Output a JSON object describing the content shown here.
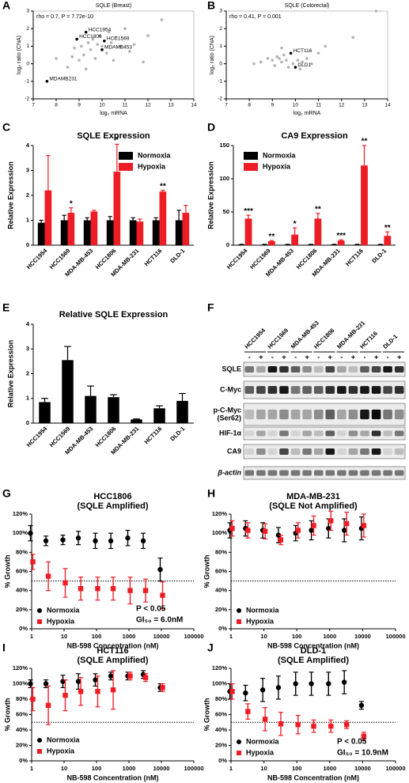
{
  "chart_data": [
    {
      "type": "scatter",
      "panel": "A",
      "title": "SQLE (Breast)",
      "annotation": "rho = 0.7, P = 7.72e-10",
      "x_label": "log₂ mRNA",
      "y_label": "log₂ ratio (CNA)",
      "x": [
        8.0,
        8.5,
        8.7,
        8.8,
        9.0,
        9.1,
        9.2,
        9.4,
        9.5,
        9.6,
        9.7,
        9.8,
        9.9,
        10.0,
        10.2,
        10.3,
        10.4,
        10.5,
        10.6,
        10.8,
        11.0,
        11.2,
        11.4,
        12.0,
        12.6,
        9.3,
        11.8,
        9.3,
        8.9,
        10.1,
        10.0,
        7.6
      ],
      "values": [
        0.3,
        -0.2,
        0.4,
        0.9,
        0.2,
        1.0,
        0.5,
        1.2,
        0.8,
        1.4,
        0.3,
        1.1,
        1.6,
        1.0,
        0.6,
        1.8,
        1.2,
        0.2,
        1.5,
        1.0,
        2.0,
        0.7,
        1.1,
        1.6,
        2.5,
        -0.3,
        0.1,
        1.8,
        1.4,
        1.3,
        0.8,
        -1.0
      ],
      "point_labels": [
        null,
        null,
        null,
        null,
        null,
        null,
        null,
        null,
        null,
        null,
        null,
        null,
        null,
        null,
        null,
        null,
        null,
        null,
        null,
        null,
        null,
        null,
        null,
        null,
        null,
        null,
        null,
        "HCC1954",
        "HCC1806",
        "HCC1569",
        "MDAMB453",
        "MDAMB231"
      ],
      "color": "#b3b3b3",
      "label_color": "#000000",
      "xlim": [
        7,
        14
      ],
      "xticks": [
        7,
        8,
        9,
        10,
        11,
        12,
        13,
        14
      ],
      "ylim": [
        -2,
        3
      ],
      "yticks": [
        -2,
        -1,
        0,
        1,
        2,
        3
      ]
    },
    {
      "type": "scatter",
      "panel": "B",
      "title": "SQLE (Colorectal)",
      "annotation": "rho = 0.41, P = 0.001",
      "x_label": "log₂ mRNA",
      "y_label": "log₂ ratio (CNA)",
      "x": [
        8.2,
        8.5,
        8.8,
        9.0,
        9.1,
        9.2,
        9.3,
        9.4,
        9.5,
        9.6,
        9.7,
        9.9,
        10.1,
        10.2,
        10.3,
        10.5,
        10.7,
        11.0,
        11.3,
        12.5,
        13.5,
        9.4,
        9.8,
        10.0
      ],
      "values": [
        0.0,
        0.1,
        0.3,
        0.2,
        -0.1,
        0.4,
        0.3,
        0.1,
        0.5,
        0.2,
        -0.2,
        0.0,
        0.2,
        -0.3,
        0.1,
        0.3,
        0.0,
        0.6,
        1.0,
        1.5,
        3.0,
        0.9,
        0.6,
        -0.2
      ],
      "point_labels": [
        null,
        null,
        null,
        null,
        null,
        null,
        null,
        null,
        null,
        null,
        null,
        null,
        null,
        null,
        null,
        null,
        null,
        null,
        null,
        null,
        null,
        null,
        "HCT116",
        "DLD1"
      ],
      "color": "#b3b3b3",
      "label_color": "#000000",
      "xlim": [
        7,
        14
      ],
      "xticks": [
        7,
        8,
        9,
        10,
        11,
        12,
        13,
        14
      ],
      "ylim": [
        -2,
        3
      ],
      "yticks": [
        -2,
        -1,
        0,
        1,
        2,
        3
      ]
    },
    {
      "type": "bar",
      "panel": "C",
      "title": "SQLE Expression",
      "y_label": "Relative Expression",
      "categories": [
        "HCC1954",
        "HCC1569",
        "MDA-MB-453",
        "HCC1806",
        "MDA-MB-231",
        "HCT116",
        "DLD-1"
      ],
      "series": [
        {
          "name": "Normoxia",
          "color": "#000000",
          "values": [
            0.9,
            1.0,
            1.0,
            1.0,
            1.0,
            1.0,
            1.0
          ],
          "errors": [
            0.1,
            0.2,
            0.1,
            0.15,
            0.1,
            0.1,
            0.4
          ]
        },
        {
          "name": "Hypoxia",
          "color": "#ee1c25",
          "values": [
            2.2,
            1.3,
            1.35,
            2.95,
            0.95,
            2.15,
            1.3
          ],
          "errors": [
            1.4,
            0.2,
            0.05,
            1.1,
            0.1,
            0.05,
            0.3
          ]
        }
      ],
      "significance": [
        null,
        "*",
        null,
        "*",
        null,
        "**",
        null
      ],
      "ylim": [
        0,
        4
      ],
      "yticks": [
        0,
        1,
        2,
        3,
        4
      ]
    },
    {
      "type": "bar",
      "panel": "D",
      "title": "CA9 Expression",
      "y_label": "Relative Expression",
      "categories": [
        "HCC1954",
        "HCC1569",
        "MDA-MB-453",
        "HCC1806",
        "MDA-MB-231",
        "HCT116",
        "DLD-1"
      ],
      "series": [
        {
          "name": "Normoxia",
          "color": "#000000",
          "values": [
            1,
            1,
            1,
            1,
            1,
            1,
            1
          ],
          "errors": [
            0.3,
            0.3,
            0.3,
            0.3,
            0.3,
            0.3,
            0.3
          ]
        },
        {
          "name": "Hypoxia",
          "color": "#ee1c25",
          "values": [
            40,
            6,
            16,
            40,
            7,
            120,
            14
          ],
          "errors": [
            5,
            1,
            10,
            8,
            1,
            30,
            6
          ]
        }
      ],
      "significance": [
        "***",
        "**",
        "*",
        "**",
        "***",
        "**",
        "**"
      ],
      "ylim": [
        0,
        150
      ],
      "yticks": [
        0,
        50,
        100,
        150
      ]
    },
    {
      "type": "bar",
      "panel": "E",
      "title": "Relative SQLE Expression",
      "y_label": "Relative Expression",
      "categories": [
        "HCC1954",
        "HCC1569",
        "MDA-MB-453",
        "HCC1806",
        "MDA-MB-231",
        "HCT116",
        "DLD-1"
      ],
      "series": [
        {
          "color": "#000000",
          "values": [
            0.85,
            2.55,
            1.1,
            1.05,
            0.15,
            0.6,
            0.9
          ],
          "errors": [
            0.15,
            0.55,
            0.4,
            0.1,
            0.02,
            0.1,
            0.3
          ]
        }
      ],
      "ylim": [
        0,
        4
      ],
      "yticks": [
        0,
        1,
        2,
        3,
        4
      ]
    },
    {
      "type": "dose",
      "panel": "G",
      "title": "HCC1806",
      "subtitle": "(SQLE Amplified)",
      "x_label": "NB-598 Concentration (nM)",
      "y_label": "% Growth",
      "log_x": true,
      "x": [
        1,
        3,
        10,
        30,
        100,
        300,
        1000,
        3000,
        10000
      ],
      "series": [
        {
          "name": "Normoxia",
          "color": "#000000",
          "marker": "circle",
          "values": [
            100,
            92,
            93,
            95,
            92,
            92,
            95,
            92,
            62
          ],
          "errors": [
            8,
            5,
            5,
            7,
            8,
            8,
            8,
            8,
            12
          ]
        },
        {
          "name": "Hypoxia",
          "color": "#ee1c25",
          "marker": "square",
          "values": [
            70,
            55,
            48,
            42,
            42,
            42,
            40,
            40,
            35
          ],
          "errors": [
            8,
            15,
            15,
            12,
            12,
            12,
            14,
            12,
            14
          ]
        }
      ],
      "reference_line": 50,
      "annotations": [
        "P < 0.05",
        "GI₅₀ = 6.0nM"
      ],
      "xlim": [
        1,
        100000
      ],
      "xticks": [
        1,
        10,
        100,
        1000,
        10000,
        100000
      ],
      "ylim": [
        0,
        120
      ],
      "yticks": [
        {
          "value": 0,
          "label": "0%"
        },
        {
          "value": 20,
          "label": "20%"
        },
        {
          "value": 40,
          "label": "40%"
        },
        {
          "value": 60,
          "label": "60%"
        },
        {
          "value": 80,
          "label": "80%"
        },
        {
          "value": 100,
          "label": "100%"
        },
        {
          "value": 120,
          "label": "120%"
        }
      ]
    },
    {
      "type": "dose",
      "panel": "H",
      "title": "MDA-MB-231",
      "subtitle": "(SQLE Not Amplified)",
      "x_label": "NB-598 Concentration (nM)",
      "y_label": "% Growth",
      "log_x": true,
      "x": [
        1,
        3,
        10,
        30,
        100,
        300,
        1000,
        3000,
        10000
      ],
      "series": [
        {
          "name": "Normoxia",
          "color": "#000000",
          "marker": "circle",
          "values": [
            103,
            105,
            103,
            98,
            100,
            103,
            105,
            103,
            105
          ],
          "errors": [
            8,
            8,
            8,
            8,
            8,
            10,
            10,
            12,
            12
          ]
        },
        {
          "name": "Hypoxia",
          "color": "#ee1c25",
          "marker": "square",
          "values": [
            105,
            103,
            102,
            93,
            103,
            108,
            113,
            110,
            108
          ],
          "errors": [
            8,
            8,
            8,
            5,
            8,
            10,
            10,
            12,
            12
          ]
        }
      ],
      "reference_line": 50,
      "xlim": [
        1,
        100000
      ],
      "xticks": [
        1,
        10,
        100,
        1000,
        10000,
        100000
      ],
      "ylim": [
        0,
        120
      ],
      "yticks": [
        {
          "value": 0,
          "label": "0%"
        },
        {
          "value": 20,
          "label": "20%"
        },
        {
          "value": 40,
          "label": "40%"
        },
        {
          "value": 60,
          "label": "60%"
        },
        {
          "value": 80,
          "label": "80%"
        },
        {
          "value": 100,
          "label": "100%"
        },
        {
          "value": 120,
          "label": "120%"
        }
      ]
    },
    {
      "type": "dose",
      "panel": "I",
      "title": "HCT116",
      "subtitle": "(SQLE Amplified)",
      "x_label": "NB-598 Concentration (nM)",
      "y_label": "% Growth",
      "log_x": true,
      "x": [
        1,
        3,
        10,
        30,
        100,
        300,
        1000,
        3000,
        10000
      ],
      "series": [
        {
          "name": "Normoxia",
          "color": "#000000",
          "marker": "circle",
          "values": [
            100,
            100,
            103,
            103,
            105,
            110,
            110,
            112,
            95
          ],
          "errors": [
            5,
            5,
            8,
            10,
            8,
            5,
            5,
            5,
            5
          ]
        },
        {
          "name": "Hypoxia",
          "color": "#ee1c25",
          "marker": "square",
          "values": [
            80,
            72,
            85,
            90,
            90,
            92,
            110,
            108,
            95
          ],
          "errors": [
            15,
            25,
            20,
            18,
            20,
            25,
            5,
            5,
            5
          ]
        }
      ],
      "reference_line": 50,
      "xlim": [
        1,
        100000
      ],
      "xticks": [
        1,
        10,
        100,
        1000,
        10000,
        100000
      ],
      "ylim": [
        0,
        120
      ],
      "yticks": [
        {
          "value": 0,
          "label": "0%"
        },
        {
          "value": 20,
          "label": "20%"
        },
        {
          "value": 40,
          "label": "40%"
        },
        {
          "value": 60,
          "label": "60%"
        },
        {
          "value": 80,
          "label": "80%"
        },
        {
          "value": 100,
          "label": "100%"
        },
        {
          "value": 120,
          "label": "120%"
        }
      ]
    },
    {
      "type": "dose",
      "panel": "J",
      "title": "DLD-1",
      "subtitle": "(SQLE Amplified)",
      "x_label": "NB-598 Concentration (nM)",
      "y_label": "% Growth",
      "log_x": true,
      "x": [
        1,
        3,
        10,
        30,
        100,
        300,
        1000,
        3000,
        10000
      ],
      "series": [
        {
          "name": "Normoxia",
          "color": "#000000",
          "marker": "circle",
          "values": [
            90,
            88,
            92,
            95,
            100,
            100,
            100,
            102,
            72
          ],
          "errors": [
            10,
            10,
            15,
            15,
            15,
            15,
            15,
            15,
            5
          ]
        },
        {
          "name": "Hypoxia",
          "color": "#ee1c25",
          "marker": "square",
          "values": [
            90,
            64,
            54,
            48,
            47,
            45,
            45,
            47,
            32
          ],
          "errors": [
            10,
            10,
            15,
            15,
            12,
            8,
            8,
            5,
            5
          ]
        }
      ],
      "reference_line": 50,
      "annotations": [
        "P < 0.05",
        "GI₅₀ = 10.9nM"
      ],
      "xlim": [
        1,
        100000
      ],
      "xticks": [
        1,
        10,
        100,
        1000,
        10000,
        100000
      ],
      "ylim": [
        0,
        120
      ],
      "yticks": [
        {
          "value": 0,
          "label": "0%"
        },
        {
          "value": 20,
          "label": "20%"
        },
        {
          "value": 40,
          "label": "40%"
        },
        {
          "value": 60,
          "label": "60%"
        },
        {
          "value": 80,
          "label": "80%"
        },
        {
          "value": 100,
          "label": "100%"
        },
        {
          "value": 120,
          "label": "120%"
        }
      ]
    }
  ],
  "blot": {
    "panel": "F",
    "cell_lines": [
      "HCC1954",
      "HCC1569",
      "MDA-MB-453",
      "HCC1806",
      "MDA-MB-231",
      "HCT116",
      "DLD-1"
    ],
    "conditions": [
      "-",
      "+"
    ],
    "rows": [
      "SQLE",
      "C-Myc",
      [
        "p-C-Myc",
        "(Ser62)"
      ],
      "HIF-1α",
      "CA9",
      "β-actin"
    ]
  }
}
